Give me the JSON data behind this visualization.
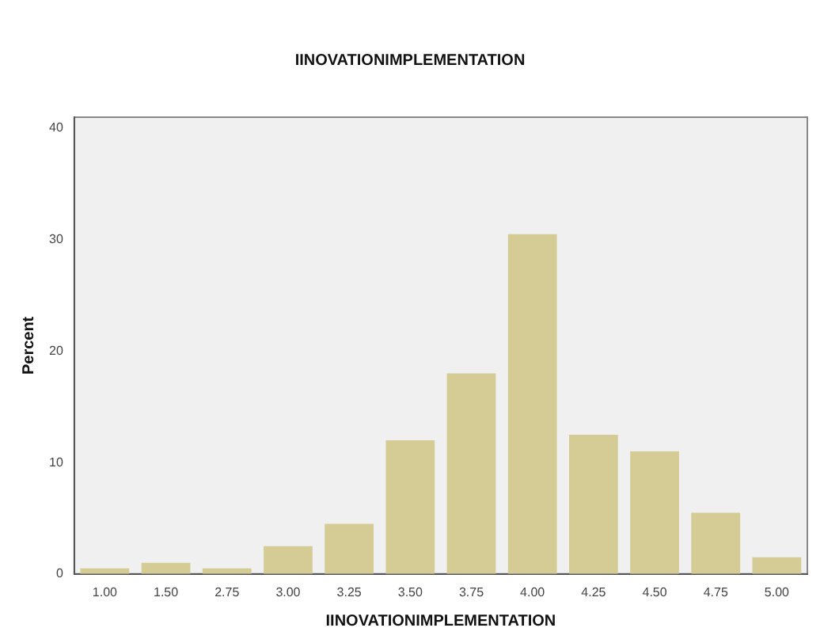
{
  "chart_data": {
    "type": "bar",
    "title": "IINOVATIONIMPLEMENTATION",
    "xlabel": "IINOVATIONIMPLEMENTATION",
    "ylabel": "Percent",
    "categories": [
      "1.00",
      "1.50",
      "2.75",
      "3.00",
      "3.25",
      "3.50",
      "3.75",
      "4.00",
      "4.25",
      "4.50",
      "4.75",
      "5.00"
    ],
    "values": [
      0.5,
      1.0,
      0.5,
      2.5,
      4.5,
      12.0,
      18.0,
      30.5,
      12.5,
      11.0,
      5.5,
      1.5
    ],
    "color": "#d4cc94",
    "ylim": [
      0,
      41
    ],
    "yticks": [
      0,
      10,
      20,
      30,
      40
    ],
    "grid": false,
    "legend": false
  }
}
